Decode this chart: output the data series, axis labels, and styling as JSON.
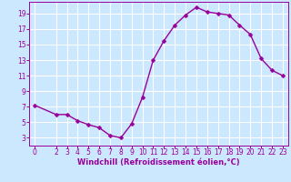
{
  "x": [
    0,
    2,
    3,
    4,
    5,
    6,
    7,
    8,
    9,
    10,
    11,
    12,
    13,
    14,
    15,
    16,
    17,
    18,
    19,
    20,
    21,
    22,
    23
  ],
  "y": [
    7.2,
    6.0,
    6.0,
    5.2,
    4.7,
    4.3,
    3.3,
    3.0,
    4.8,
    8.2,
    13.0,
    15.5,
    17.5,
    18.8,
    19.8,
    19.2,
    19.0,
    18.8,
    17.5,
    16.3,
    13.2,
    11.7,
    11.0
  ],
  "line_color": "#990099",
  "marker_color": "#990099",
  "bg_color": "#cce8ff",
  "grid_color": "#ffffff",
  "xlabel": "Windchill (Refroidissement éolien,°C)",
  "xlabel_color": "#990099",
  "tick_color": "#990099",
  "ylim": [
    2,
    20.5
  ],
  "xlim": [
    -0.5,
    23.5
  ],
  "yticks": [
    3,
    5,
    7,
    9,
    11,
    13,
    15,
    17,
    19
  ],
  "xticks": [
    0,
    2,
    3,
    4,
    5,
    6,
    7,
    8,
    9,
    10,
    11,
    12,
    13,
    14,
    15,
    16,
    17,
    18,
    19,
    20,
    21,
    22,
    23
  ],
  "marker_size": 2.5,
  "line_width": 1.0,
  "tick_fontsize": 5.5,
  "xlabel_fontsize": 6.0
}
